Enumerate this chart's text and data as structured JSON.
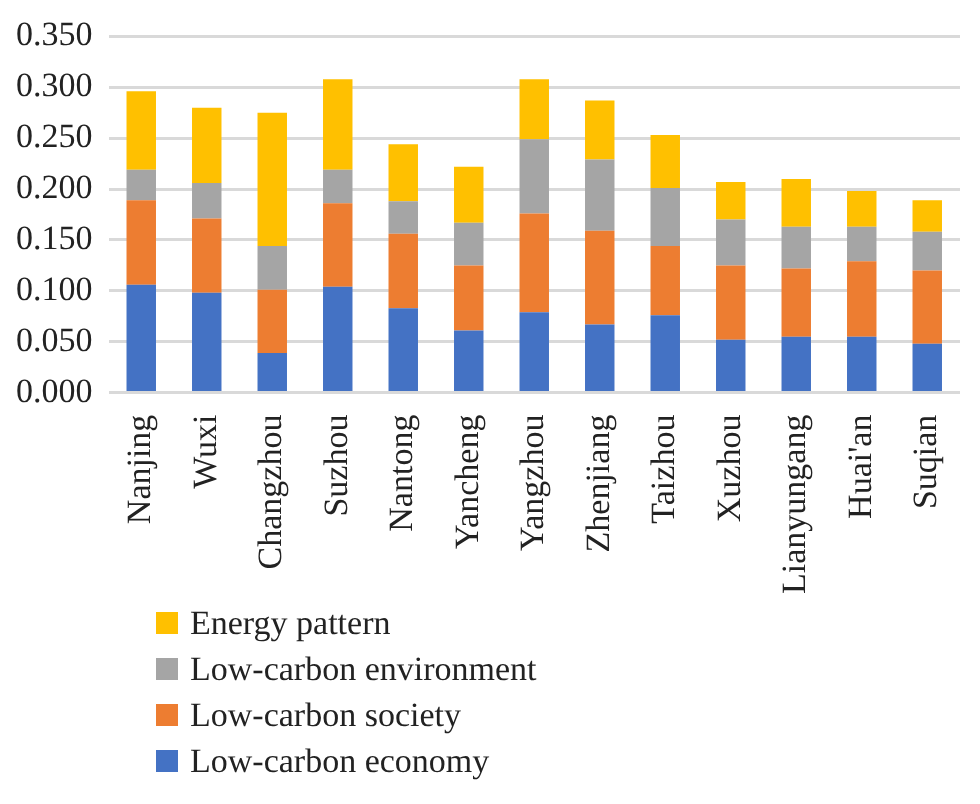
{
  "chart_data": {
    "type": "bar",
    "stacked": true,
    "categories": [
      "Nanjing",
      "Wuxi",
      "Changzhou",
      "Suzhou",
      "Nantong",
      "Yancheng",
      "Yangzhou",
      "Zhenjiang",
      "Taizhou",
      "Xuzhou",
      "Lianyungang",
      "Huai'an",
      "Suqian"
    ],
    "series": [
      {
        "name": "Low-carbon economy",
        "color": "#4472c4",
        "values": [
          0.106,
          0.098,
          0.039,
          0.104,
          0.083,
          0.061,
          0.079,
          0.067,
          0.076,
          0.052,
          0.055,
          0.055,
          0.048
        ]
      },
      {
        "name": "Low-carbon society",
        "color": "#ed7d31",
        "values": [
          0.083,
          0.073,
          0.062,
          0.082,
          0.073,
          0.064,
          0.097,
          0.092,
          0.068,
          0.073,
          0.067,
          0.074,
          0.072
        ]
      },
      {
        "name": "Low-carbon environment",
        "color": "#a5a5a5",
        "values": [
          0.03,
          0.035,
          0.043,
          0.033,
          0.032,
          0.042,
          0.073,
          0.07,
          0.057,
          0.045,
          0.041,
          0.034,
          0.038
        ]
      },
      {
        "name": "Energy pattern",
        "color": "#ffc000",
        "values": [
          0.077,
          0.074,
          0.131,
          0.089,
          0.056,
          0.055,
          0.059,
          0.058,
          0.052,
          0.037,
          0.047,
          0.035,
          0.031
        ]
      }
    ],
    "ylim": [
      0,
      0.35
    ],
    "yticks": [
      {
        "value": 0,
        "label": "0.000"
      },
      {
        "value": 0.05,
        "label": "0.050"
      },
      {
        "value": 0.1,
        "label": "0.100"
      },
      {
        "value": 0.15,
        "label": "0.150"
      },
      {
        "value": 0.2,
        "label": "0.200"
      },
      {
        "value": 0.25,
        "label": "0.250"
      },
      {
        "value": 0.3,
        "label": "0.300"
      },
      {
        "value": 0.35,
        "label": "0.350"
      }
    ],
    "grid": "y",
    "legend": "bottom"
  }
}
